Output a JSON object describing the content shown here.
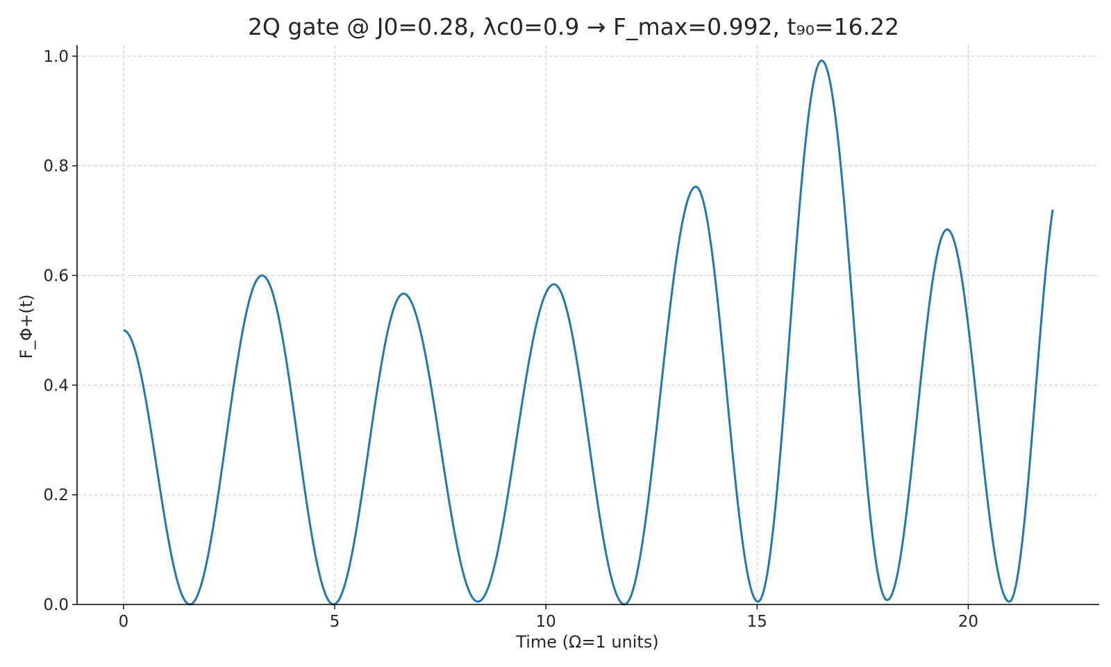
{
  "chart_data": {
    "type": "line",
    "title": "2Q gate @ J0=0.28, λc0=0.9 → F_max=0.992, t₉₀=16.22",
    "xlabel": "Time (Ω=1 units)",
    "ylabel": "F_Φ+(t)",
    "xlim": [
      -1.1,
      23.1
    ],
    "ylim": [
      0,
      1.02
    ],
    "xticks": [
      0,
      5,
      10,
      15,
      20
    ],
    "yticks": [
      0.0,
      0.2,
      0.4,
      0.6,
      0.8,
      1.0
    ],
    "xtick_labels": [
      "0",
      "5",
      "10",
      "15",
      "20"
    ],
    "ytick_labels": [
      "0.0",
      "0.2",
      "0.4",
      "0.6",
      "0.8",
      "1.0"
    ],
    "grid": true,
    "color": "#1f77b4",
    "series": [
      {
        "extrema": [
          [
            0.0,
            0.5
          ],
          [
            1.57,
            0.0
          ],
          [
            3.28,
            0.6
          ],
          [
            4.97,
            0.0
          ],
          [
            6.63,
            0.567
          ],
          [
            8.39,
            0.005
          ],
          [
            10.19,
            0.584
          ],
          [
            11.86,
            0.0
          ],
          [
            13.55,
            0.762
          ],
          [
            15.02,
            0.005
          ],
          [
            16.53,
            0.992
          ],
          [
            18.08,
            0.008
          ],
          [
            19.5,
            0.684
          ],
          [
            20.97,
            0.005
          ],
          [
            22.0,
            0.72
          ]
        ]
      }
    ]
  }
}
